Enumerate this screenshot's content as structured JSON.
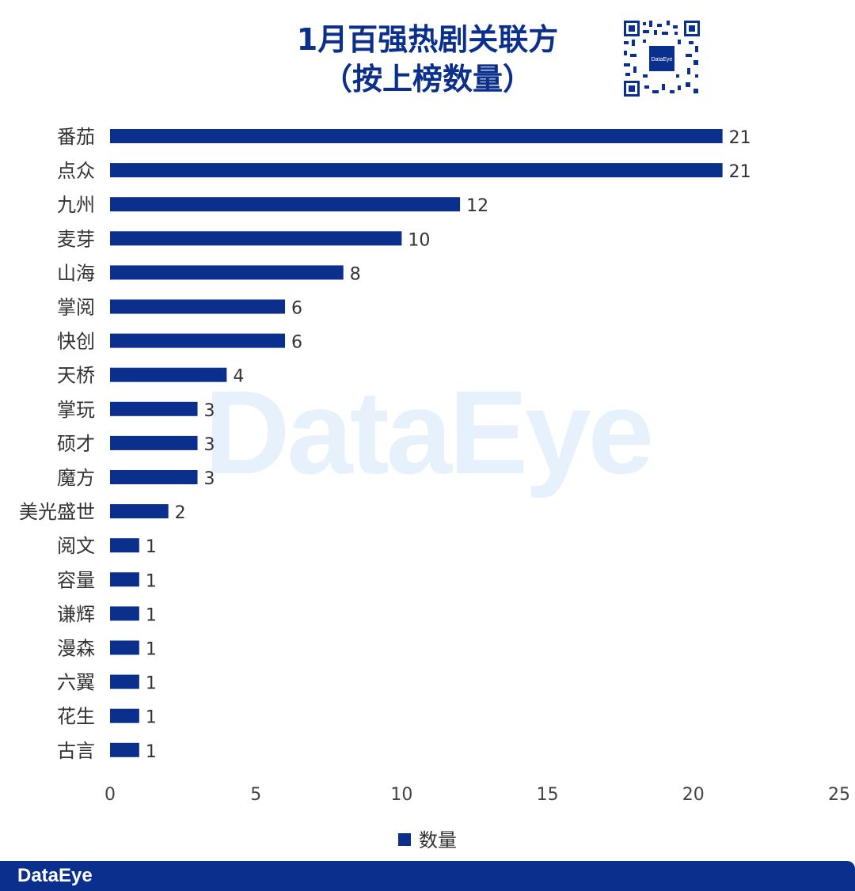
{
  "header": {
    "title_line1": "1月百强热剧关联方",
    "title_line2": "（按上榜数量）",
    "qr_label": "DataEye"
  },
  "watermark": "DataEye",
  "footer": {
    "brand": "DataEye"
  },
  "colors": {
    "bar": "#0a2f8c",
    "title": "#0a2f8c",
    "watermark": "#e6f1fb"
  },
  "chart_data": {
    "type": "bar",
    "orientation": "horizontal",
    "title": "1月百强热剧关联方（按上榜数量）",
    "categories": [
      "番茄",
      "点众",
      "九州",
      "麦芽",
      "山海",
      "掌阅",
      "快创",
      "天桥",
      "掌玩",
      "硕才",
      "魔方",
      "美光盛世",
      "阅文",
      "容量",
      "谦辉",
      "漫森",
      "六翼",
      "花生",
      "古言"
    ],
    "series": [
      {
        "name": "数量",
        "values": [
          21,
          21,
          12,
          10,
          8,
          6,
          6,
          4,
          3,
          3,
          3,
          2,
          1,
          1,
          1,
          1,
          1,
          1,
          1
        ]
      }
    ],
    "xlim": [
      0,
      25
    ],
    "xticks": [
      0,
      5,
      10,
      15,
      20,
      25
    ],
    "grid": false,
    "legend": "bottom",
    "data_labels": true
  }
}
